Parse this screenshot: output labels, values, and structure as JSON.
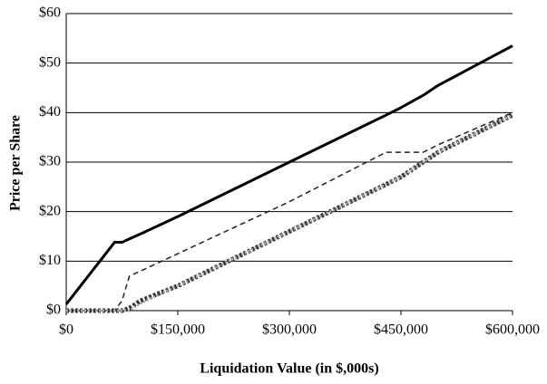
{
  "chart_data": {
    "type": "line",
    "xlabel": "Liquidation Value (in $,000s)",
    "ylabel": "Price per Share",
    "x": [
      0,
      65000,
      75000,
      85000,
      100000,
      150000,
      300000,
      430000,
      450000,
      480000,
      500000,
      600000
    ],
    "series": [
      {
        "color": "#000000",
        "width": 3,
        "dash": "none",
        "values": [
          1.3,
          13.8,
          13.8,
          14.5,
          15.5,
          19,
          30,
          39.5,
          41,
          43.5,
          45.5,
          53.5
        ]
      },
      {
        "color": "#222222",
        "width": 1.5,
        "dash": "6 4",
        "values": [
          0,
          0,
          2,
          7,
          8,
          11.5,
          22,
          32,
          32,
          32,
          33.5,
          40
        ]
      },
      {
        "color": "#333333",
        "width": 5,
        "dash": "3 2",
        "values": [
          0,
          0,
          0,
          0.5,
          2,
          5,
          16,
          25.5,
          27,
          30,
          32,
          39.5
        ]
      },
      {
        "color": "#aaaaaa",
        "width": 3,
        "dash": "2 2",
        "values": [
          0,
          0,
          0,
          0,
          1.5,
          5,
          16,
          25.5,
          27,
          30,
          32,
          39.5
        ]
      }
    ],
    "xlim": [
      0,
      600000
    ],
    "xticks": [
      {
        "value": 0,
        "label": "$0"
      },
      {
        "value": 150000,
        "label": "$150,000"
      },
      {
        "value": 300000,
        "label": "$300,000"
      },
      {
        "value": 450000,
        "label": "$450,000"
      },
      {
        "value": 600000,
        "label": "$600,000"
      }
    ],
    "ylim": [
      0,
      60
    ],
    "yticks": [
      {
        "value": 0,
        "label": "$0"
      },
      {
        "value": 10,
        "label": "$10"
      },
      {
        "value": 20,
        "label": "$20"
      },
      {
        "value": 30,
        "label": "$30"
      },
      {
        "value": 40,
        "label": "$40"
      },
      {
        "value": 50,
        "label": "$50"
      },
      {
        "value": 60,
        "label": "$60"
      }
    ],
    "grid": true
  }
}
